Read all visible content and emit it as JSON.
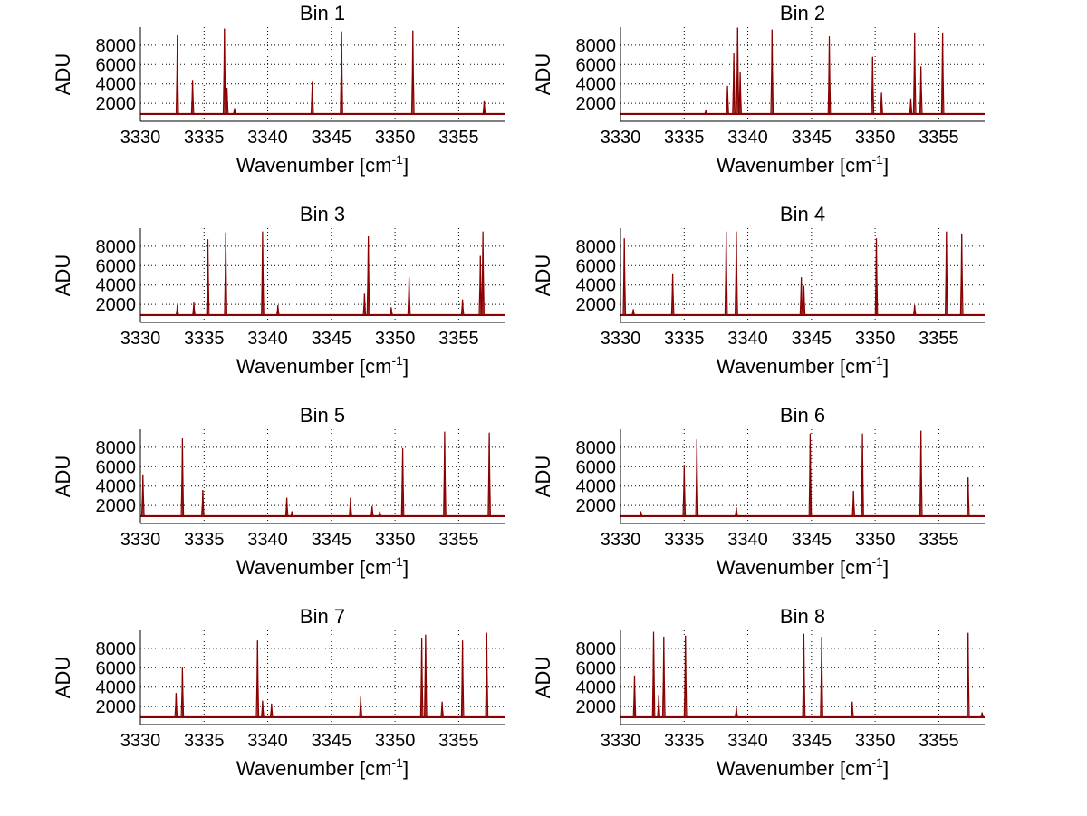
{
  "chart_data": [
    {
      "type": "line",
      "title": "Bin 1",
      "xlabel": "Wavenumber [cm",
      "xlabel_superscript": "-1",
      "xlabel_suffix": "]",
      "ylabel": "ADU",
      "xlim": [
        3330,
        3358.6
      ],
      "ylim": [
        150,
        9850
      ],
      "xticks": [
        3330,
        3335,
        3340,
        3345,
        3350,
        3355
      ],
      "yticks": [
        2000,
        4000,
        6000,
        8000
      ],
      "grid": true,
      "baseline": 900,
      "line_color": "#8b0000",
      "peaks": [
        [
          3332.9,
          9000
        ],
        [
          3334.1,
          4400
        ],
        [
          3336.6,
          9700
        ],
        [
          3336.8,
          3600
        ],
        [
          3337.4,
          1500
        ],
        [
          3343.5,
          4300
        ],
        [
          3345.8,
          9400
        ],
        [
          3351.4,
          9500
        ],
        [
          3357.0,
          2300
        ]
      ]
    },
    {
      "type": "line",
      "title": "Bin 2",
      "xlabel": "Wavenumber [cm",
      "xlabel_superscript": "-1",
      "xlabel_suffix": "]",
      "ylabel": "ADU",
      "xlim": [
        3330,
        3358.6
      ],
      "ylim": [
        150,
        9850
      ],
      "xticks": [
        3330,
        3335,
        3340,
        3345,
        3350,
        3355
      ],
      "yticks": [
        2000,
        4000,
        6000,
        8000
      ],
      "grid": true,
      "baseline": 900,
      "line_color": "#8b0000",
      "peaks": [
        [
          3336.7,
          1300
        ],
        [
          3338.4,
          3800
        ],
        [
          3338.9,
          7200
        ],
        [
          3339.2,
          9800
        ],
        [
          3339.4,
          5200
        ],
        [
          3341.9,
          9600
        ],
        [
          3346.4,
          8900
        ],
        [
          3349.8,
          6800
        ],
        [
          3350.5,
          3100
        ],
        [
          3352.8,
          2500
        ],
        [
          3353.1,
          9300
        ],
        [
          3353.6,
          5800
        ],
        [
          3355.3,
          9300
        ]
      ]
    },
    {
      "type": "line",
      "title": "Bin 3",
      "xlabel": "Wavenumber [cm",
      "xlabel_superscript": "-1",
      "xlabel_suffix": "]",
      "ylabel": "ADU",
      "xlim": [
        3330,
        3358.6
      ],
      "ylim": [
        150,
        9850
      ],
      "xticks": [
        3330,
        3335,
        3340,
        3345,
        3350,
        3355
      ],
      "yticks": [
        2000,
        4000,
        6000,
        8000
      ],
      "grid": true,
      "baseline": 900,
      "line_color": "#8b0000",
      "peaks": [
        [
          3332.9,
          1900
        ],
        [
          3334.2,
          2200
        ],
        [
          3335.3,
          8700
        ],
        [
          3336.7,
          9400
        ],
        [
          3339.6,
          9500
        ],
        [
          3340.8,
          1900
        ],
        [
          3347.6,
          3100
        ],
        [
          3347.9,
          9000
        ],
        [
          3349.7,
          1700
        ],
        [
          3351.1,
          4800
        ],
        [
          3355.3,
          2500
        ],
        [
          3356.7,
          7000
        ],
        [
          3356.9,
          9500
        ]
      ]
    },
    {
      "type": "line",
      "title": "Bin 4",
      "xlabel": "Wavenumber [cm",
      "xlabel_superscript": "-1",
      "xlabel_suffix": "]",
      "ylabel": "ADU",
      "xlim": [
        3330,
        3358.6
      ],
      "ylim": [
        150,
        9850
      ],
      "xticks": [
        3330,
        3335,
        3340,
        3345,
        3350,
        3355
      ],
      "yticks": [
        2000,
        4000,
        6000,
        8000
      ],
      "grid": true,
      "baseline": 900,
      "line_color": "#8b0000",
      "peaks": [
        [
          3330.3,
          8800
        ],
        [
          3331.0,
          1500
        ],
        [
          3334.1,
          5200
        ],
        [
          3338.3,
          9500
        ],
        [
          3339.1,
          9500
        ],
        [
          3344.2,
          4800
        ],
        [
          3344.4,
          3900
        ],
        [
          3350.1,
          8800
        ],
        [
          3353.1,
          1900
        ],
        [
          3355.6,
          9500
        ],
        [
          3356.8,
          9300
        ]
      ]
    },
    {
      "type": "line",
      "title": "Bin 5",
      "xlabel": "Wavenumber [cm",
      "xlabel_superscript": "-1",
      "xlabel_suffix": "]",
      "ylabel": "ADU",
      "xlim": [
        3330,
        3358.6
      ],
      "ylim": [
        150,
        9850
      ],
      "xticks": [
        3330,
        3335,
        3340,
        3345,
        3350,
        3355
      ],
      "yticks": [
        2000,
        4000,
        6000,
        8000
      ],
      "grid": true,
      "baseline": 900,
      "line_color": "#8b0000",
      "peaks": [
        [
          3330.2,
          5200
        ],
        [
          3333.3,
          8900
        ],
        [
          3334.9,
          3600
        ],
        [
          3341.5,
          2800
        ],
        [
          3341.9,
          1400
        ],
        [
          3346.5,
          2800
        ],
        [
          3348.2,
          1900
        ],
        [
          3348.8,
          1400
        ],
        [
          3350.6,
          7900
        ],
        [
          3353.9,
          9600
        ],
        [
          3357.4,
          9500
        ]
      ]
    },
    {
      "type": "line",
      "title": "Bin 6",
      "xlabel": "Wavenumber [cm",
      "xlabel_superscript": "-1",
      "xlabel_suffix": "]",
      "ylabel": "ADU",
      "xlim": [
        3330,
        3358.6
      ],
      "ylim": [
        150,
        9850
      ],
      "xticks": [
        3330,
        3335,
        3340,
        3345,
        3350,
        3355
      ],
      "yticks": [
        2000,
        4000,
        6000,
        8000
      ],
      "grid": true,
      "baseline": 900,
      "line_color": "#8b0000",
      "peaks": [
        [
          3331.6,
          1400
        ],
        [
          3335.0,
          6200
        ],
        [
          3336.0,
          8800
        ],
        [
          3339.1,
          1800
        ],
        [
          3344.9,
          9400
        ],
        [
          3348.3,
          3500
        ],
        [
          3349.0,
          9400
        ],
        [
          3353.6,
          9700
        ],
        [
          3357.3,
          4900
        ]
      ]
    },
    {
      "type": "line",
      "title": "Bin 7",
      "xlabel": "Wavenumber [cm",
      "xlabel_superscript": "-1",
      "xlabel_suffix": "]",
      "ylabel": "ADU",
      "xlim": [
        3330,
        3358.6
      ],
      "ylim": [
        150,
        9850
      ],
      "xticks": [
        3330,
        3335,
        3340,
        3345,
        3350,
        3355
      ],
      "yticks": [
        2000,
        4000,
        6000,
        8000
      ],
      "grid": true,
      "baseline": 900,
      "line_color": "#8b0000",
      "peaks": [
        [
          3332.8,
          3400
        ],
        [
          3333.3,
          6000
        ],
        [
          3339.2,
          8800
        ],
        [
          3339.6,
          2600
        ],
        [
          3340.3,
          2300
        ],
        [
          3347.3,
          3000
        ],
        [
          3352.1,
          9000
        ],
        [
          3352.4,
          9400
        ],
        [
          3353.7,
          2500
        ],
        [
          3355.3,
          8800
        ],
        [
          3357.2,
          9600
        ]
      ]
    },
    {
      "type": "line",
      "title": "Bin 8",
      "xlabel": "Wavenumber [cm",
      "xlabel_superscript": "-1",
      "xlabel_suffix": "]",
      "ylabel": "ADU",
      "xlim": [
        3330,
        3358.6
      ],
      "ylim": [
        150,
        9850
      ],
      "xticks": [
        3330,
        3335,
        3340,
        3345,
        3350,
        3355
      ],
      "yticks": [
        2000,
        4000,
        6000,
        8000
      ],
      "grid": true,
      "baseline": 900,
      "line_color": "#8b0000",
      "peaks": [
        [
          3331.1,
          5200
        ],
        [
          3332.6,
          9700
        ],
        [
          3333.0,
          3200
        ],
        [
          3333.4,
          9200
        ],
        [
          3335.1,
          9300
        ],
        [
          3339.1,
          1900
        ],
        [
          3344.4,
          9500
        ],
        [
          3345.8,
          9200
        ],
        [
          3348.2,
          2500
        ],
        [
          3357.3,
          9600
        ],
        [
          3358.4,
          1400
        ]
      ]
    }
  ]
}
